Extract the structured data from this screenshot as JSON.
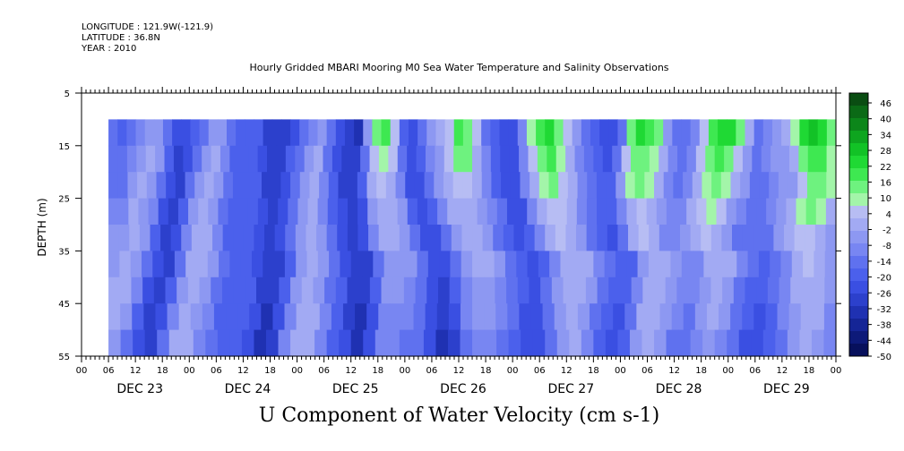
{
  "header": {
    "longitude": "LONGITUDE : 121.9W(-121.9)",
    "latitude": "LATITUDE : 36.8N",
    "year": "YEAR : 2010"
  },
  "chart_data": {
    "type": "heatmap",
    "title": "Hourly Gridded MBARI Mooring M0 Sea Water Temperature and Salinity Observations",
    "variable_label": "U Component of Water Velocity (cm s-1)",
    "ylabel": "DEPTH (m)",
    "y_ticks": [
      "5",
      "15",
      "25",
      "35",
      "45",
      "55"
    ],
    "ylim": [
      55,
      5
    ],
    "hour_ticks": [
      "00",
      "06",
      "12",
      "18",
      "00",
      "06",
      "12",
      "18",
      "00",
      "06",
      "12",
      "18",
      "00",
      "06",
      "12",
      "18",
      "00",
      "06",
      "12",
      "18",
      "00",
      "06",
      "12",
      "18",
      "00",
      "06",
      "12",
      "18",
      "00"
    ],
    "day_labels": [
      "DEC 23",
      "DEC 24",
      "DEC 25",
      "DEC 26",
      "DEC 27",
      "DEC 28",
      "DEC 29"
    ],
    "data_depth_range": [
      10,
      55
    ],
    "data_start_hour": 6,
    "colorbar_levels": [
      "46",
      "40",
      "34",
      "28",
      "22",
      "16",
      "10",
      "4",
      "-2",
      "-8",
      "-14",
      "-20",
      "-26",
      "-32",
      "-38",
      "-44",
      "-50"
    ],
    "colorbar_colors": [
      "#0a4d12",
      "#0b6a16",
      "#0c861a",
      "#0ea51f",
      "#12c226",
      "#1fd934",
      "#3ee851",
      "#6ef27f",
      "#a3f5a9",
      "#b7bdf3",
      "#a2aaf3",
      "#8d98f2",
      "#7886f2",
      "#5f71ef",
      "#4b60ec",
      "#3a4fe2",
      "#2c40cc",
      "#1f31b2",
      "#152596",
      "#0d1a79",
      "#07105c"
    ],
    "field_rows": [
      [
        -14,
        -17,
        -13,
        -8,
        -5,
        -3,
        -12,
        -22,
        -24,
        -18,
        -12,
        -6,
        -3,
        -13,
        -19,
        -20,
        -18,
        -27,
        -30,
        -28,
        -23,
        -16,
        -8,
        -4,
        -14,
        -24,
        -30,
        -32,
        -6,
        12,
        18,
        6,
        -18,
        -24,
        -12,
        -4,
        -2,
        6,
        18,
        16,
        4,
        -14,
        -20,
        -24,
        -26,
        -8,
        10,
        18,
        26,
        16,
        4,
        -6,
        -14,
        -20,
        -22,
        -24,
        -14,
        14,
        24,
        20,
        12,
        -4,
        -12,
        -14,
        -8,
        6,
        20,
        26,
        24,
        12,
        -2,
        -12,
        -10,
        -4,
        -2,
        8,
        22,
        30,
        26,
        14
      ],
      [
        -14,
        -15,
        -10,
        -5,
        -1,
        -6,
        -18,
        -27,
        -24,
        -13,
        -6,
        -2,
        -10,
        -18,
        -20,
        -19,
        -24,
        -29,
        -27,
        -20,
        -12,
        -5,
        -2,
        -12,
        -22,
        -28,
        -30,
        -14,
        4,
        10,
        4,
        -14,
        -22,
        -18,
        -8,
        -4,
        4,
        12,
        12,
        2,
        -10,
        -20,
        -24,
        -22,
        -10,
        6,
        14,
        18,
        10,
        2,
        -8,
        -14,
        -20,
        -22,
        -16,
        4,
        16,
        16,
        8,
        -2,
        -10,
        -12,
        -10,
        4,
        16,
        20,
        16,
        6,
        -4,
        -12,
        -10,
        -6,
        -4,
        2,
        12,
        20,
        20,
        10
      ],
      [
        -13,
        -12,
        -6,
        -2,
        -4,
        -14,
        -25,
        -27,
        -16,
        -5,
        -2,
        -6,
        -16,
        -20,
        -18,
        -20,
        -29,
        -28,
        -22,
        -12,
        -4,
        -2,
        -10,
        -20,
        -27,
        -30,
        -20,
        -2,
        4,
        0,
        -10,
        -22,
        -24,
        -14,
        -6,
        0,
        6,
        6,
        -2,
        -8,
        -18,
        -24,
        -22,
        -10,
        2,
        10,
        12,
        6,
        -2,
        -10,
        -16,
        -20,
        -18,
        -6,
        8,
        12,
        8,
        -2,
        -8,
        -12,
        -10,
        0,
        10,
        14,
        10,
        2,
        -6,
        -12,
        -12,
        -10,
        -6,
        -4,
        4,
        12,
        16,
        10
      ],
      [
        -10,
        -8,
        -2,
        -3,
        -10,
        -22,
        -28,
        -20,
        -6,
        -1,
        -3,
        -12,
        -19,
        -19,
        -18,
        -26,
        -30,
        -24,
        -12,
        -3,
        -2,
        -8,
        -18,
        -26,
        -30,
        -24,
        -6,
        2,
        2,
        -6,
        -18,
        -26,
        -20,
        -8,
        -2,
        2,
        2,
        -4,
        -10,
        -16,
        -22,
        -22,
        -10,
        0,
        6,
        6,
        0,
        -8,
        -14,
        -20,
        -20,
        -10,
        2,
        6,
        2,
        -6,
        -10,
        -10,
        -2,
        6,
        8,
        4,
        -4,
        -10,
        -14,
        -14,
        -10,
        -6,
        0,
        8,
        12,
        8,
        -2
      ],
      [
        -7,
        -3,
        -1,
        -6,
        -18,
        -27,
        -24,
        -10,
        -1,
        -2,
        -8,
        -17,
        -20,
        -19,
        -24,
        -30,
        -26,
        -14,
        -4,
        -1,
        -6,
        -16,
        -24,
        -30,
        -26,
        -10,
        -2,
        -2,
        -6,
        -16,
        -26,
        -24,
        -12,
        -4,
        0,
        0,
        -6,
        -12,
        -18,
        -22,
        -20,
        -10,
        0,
        4,
        2,
        -4,
        -12,
        -18,
        -22,
        -14,
        -2,
        4,
        0,
        -8,
        -10,
        -6,
        2,
        4,
        0,
        -6,
        -12,
        -16,
        -16,
        -12,
        -6,
        2,
        6,
        6,
        -2,
        -6
      ],
      [
        -4,
        -1,
        -4,
        -14,
        -25,
        -28,
        -15,
        -2,
        -1,
        -5,
        -14,
        -20,
        -20,
        -22,
        -29,
        -28,
        -17,
        -5,
        -1,
        -4,
        -14,
        -22,
        -29,
        -28,
        -14,
        -4,
        -4,
        -6,
        -14,
        -24,
        -26,
        -16,
        -6,
        -2,
        -2,
        -6,
        -12,
        -18,
        -22,
        -18,
        -8,
        0,
        2,
        0,
        -8,
        -16,
        -20,
        -18,
        -6,
        2,
        0,
        -6,
        -10,
        -8,
        -2,
        2,
        -2,
        -10,
        -16,
        -18,
        -14,
        -8,
        0,
        4,
        2,
        -4
      ],
      [
        -2,
        -2,
        -10,
        -22,
        -29,
        -20,
        -4,
        -1,
        -4,
        -12,
        -19,
        -21,
        -21,
        -28,
        -30,
        -20,
        -6,
        -1,
        -3,
        -12,
        -20,
        -28,
        -30,
        -18,
        -6,
        -6,
        -8,
        -14,
        -24,
        -28,
        -20,
        -8,
        -4,
        -4,
        -8,
        -14,
        -20,
        -22,
        -16,
        -6,
        0,
        0,
        -6,
        -14,
        -20,
        -20,
        -10,
        0,
        0,
        -4,
        -10,
        -10,
        -4,
        0,
        -4,
        -12,
        -18,
        -20,
        -16,
        -10,
        -2,
        2,
        0,
        -6
      ],
      [
        -1,
        -6,
        -18,
        -27,
        -25,
        -8,
        -1,
        -3,
        -10,
        -18,
        -21,
        -20,
        -26,
        -31,
        -24,
        -8,
        -1,
        -2,
        -10,
        -19,
        -27,
        -31,
        -22,
        -8,
        -8,
        -10,
        -14,
        -24,
        -30,
        -24,
        -10,
        -6,
        -6,
        -10,
        -16,
        -22,
        -22,
        -14,
        -4,
        0,
        -4,
        -12,
        -20,
        -22,
        -14,
        -2,
        0,
        -4,
        -10,
        -12,
        -6,
        -2,
        -6,
        -14,
        -20,
        -22,
        -18,
        -10,
        -4,
        0,
        -2,
        -8
      ],
      [
        -3,
        -12,
        -24,
        -30,
        -14,
        -2,
        -2,
        -8,
        -16,
        -21,
        -20,
        -24,
        -31,
        -27,
        -11,
        -2,
        -2,
        -8,
        -18,
        -26,
        -32,
        -26,
        -10,
        -10,
        -12,
        -16,
        -24,
        -32,
        -28,
        -12,
        -8,
        -8,
        -12,
        -18,
        -24,
        -22,
        -12,
        -4,
        -2,
        -10,
        -20,
        -24,
        -18,
        -4,
        -2,
        -6,
        -12,
        -14,
        -8,
        -4,
        -8,
        -16,
        -22,
        -24,
        -20,
        -12,
        -6,
        -2,
        -4,
        -10
      ]
    ]
  }
}
